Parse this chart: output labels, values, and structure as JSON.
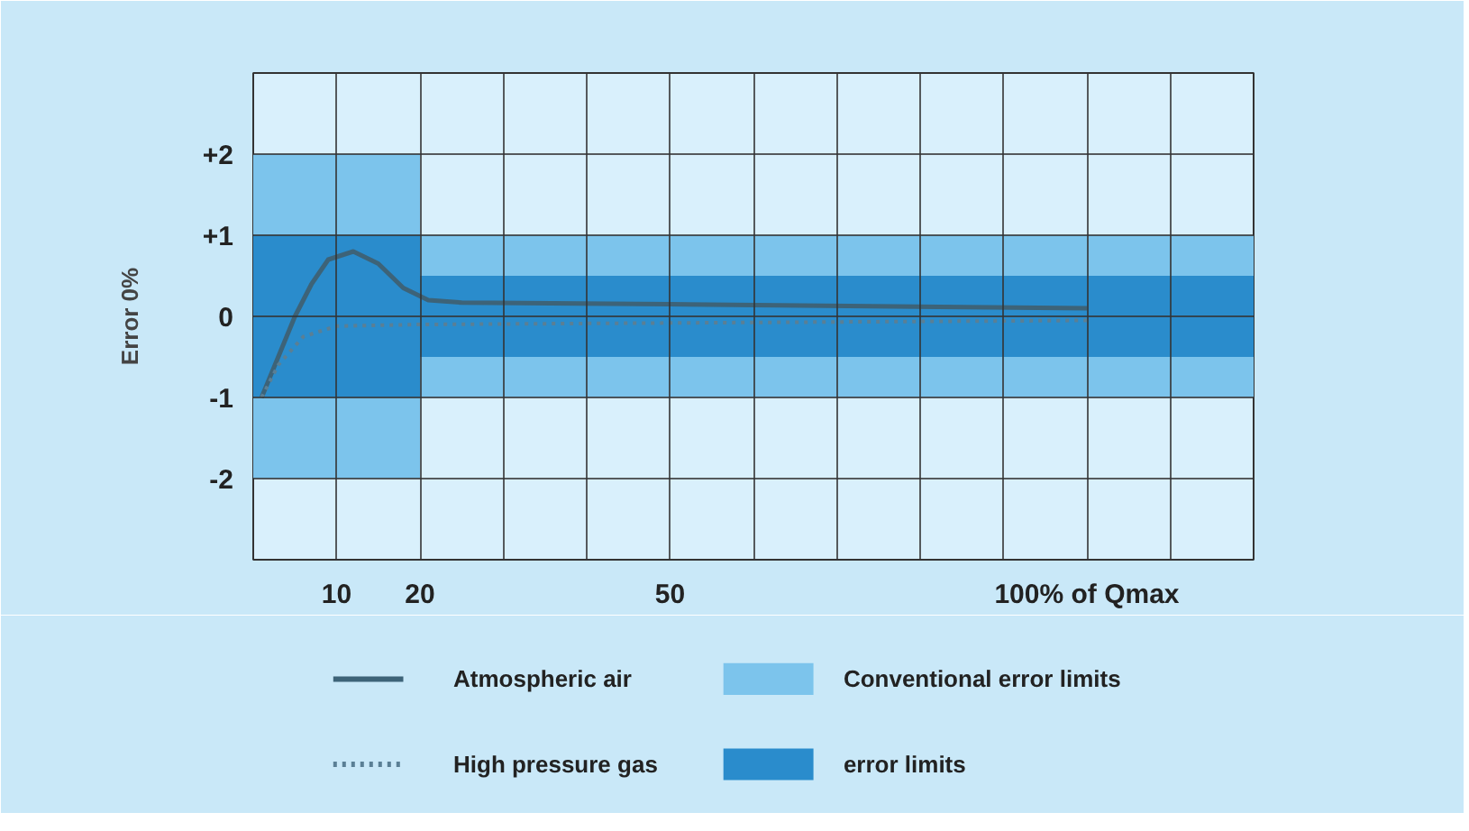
{
  "chart_data": {
    "type": "line",
    "ylabel": "Error 0%",
    "xlim": [
      0,
      120
    ],
    "ylim": [
      -3,
      3
    ],
    "xticks": [
      {
        "value": 0,
        "label": null
      },
      10,
      20,
      {
        "value": 30,
        "label": null
      },
      {
        "value": 40,
        "label": null
      },
      50,
      {
        "value": 60,
        "label": null
      },
      {
        "value": 70,
        "label": null
      },
      {
        "value": 80,
        "label": null
      },
      {
        "value": 90,
        "label": null
      },
      {
        "value": 100,
        "label": "100% of Qmax"
      },
      {
        "value": 110,
        "label": null
      },
      {
        "value": 120,
        "label": null
      }
    ],
    "yticks": [
      {
        "value": -2,
        "label": "-2"
      },
      {
        "value": -1,
        "label": "-1"
      },
      0,
      {
        "value": 1,
        "label": "+1"
      },
      {
        "value": 2,
        "label": "+2"
      }
    ],
    "grid": true,
    "legend": "bottom",
    "series": [
      {
        "name": "Conventional error limits",
        "type": "bar",
        "color": "#7cc4ec",
        "x": [
          10,
          70
        ],
        "values": [
          4,
          2
        ],
        "base": [
          -2,
          -1
        ]
      },
      {
        "name": "error limits",
        "type": "bar",
        "color": "#2a8ccc",
        "x": [
          10,
          70
        ],
        "values": [
          2,
          1
        ],
        "base": [
          -1,
          -0.5
        ]
      },
      {
        "name": "Atmospheric air",
        "line_style": "solid",
        "color": "#3d6378",
        "x": [
          1,
          3,
          5,
          7,
          9,
          12,
          15,
          18,
          21,
          25,
          50,
          100
        ],
        "values": [
          -1,
          -0.5,
          0,
          0.4,
          0.7,
          0.8,
          0.65,
          0.35,
          0.2,
          0.17,
          0.15,
          0.1
        ]
      },
      {
        "name": "High pressure gas",
        "line_style": "dotted",
        "color": "#5a7f95",
        "x": [
          1,
          3,
          6,
          10,
          20,
          100
        ],
        "values": [
          -1,
          -0.6,
          -0.25,
          -0.12,
          -0.1,
          -0.05
        ]
      }
    ]
  }
}
